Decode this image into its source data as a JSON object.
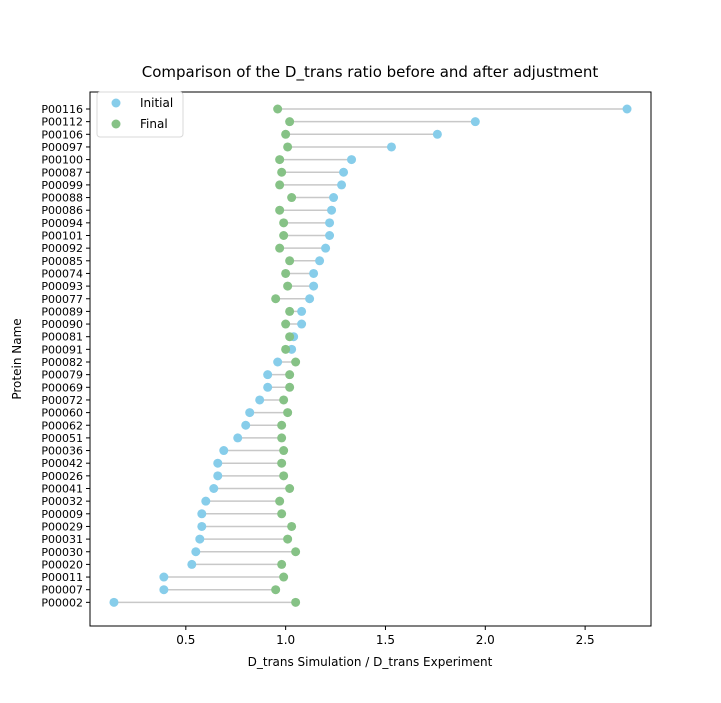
{
  "chart_data": {
    "type": "scatter",
    "subtype": "dumbbell",
    "title": "Comparison of the D_trans ratio before and after adjustment",
    "xlabel": "D_trans Simulation / D_trans Experiment",
    "ylabel": "Protein Name",
    "xlim": [
      0.02,
      2.83
    ],
    "xticks": [
      0.5,
      1.0,
      1.5,
      2.0,
      2.5
    ],
    "xtick_labels": [
      "0.5",
      "1.0",
      "1.5",
      "2.0",
      "2.5"
    ],
    "grid": false,
    "legend_position": "top-left",
    "categories": [
      "P00116",
      "P00112",
      "P00106",
      "P00097",
      "P00100",
      "P00087",
      "P00099",
      "P00088",
      "P00086",
      "P00094",
      "P00101",
      "P00092",
      "P00085",
      "P00074",
      "P00093",
      "P00077",
      "P00089",
      "P00090",
      "P00081",
      "P00091",
      "P00082",
      "P00079",
      "P00069",
      "P00072",
      "P00060",
      "P00062",
      "P00051",
      "P00036",
      "P00042",
      "P00026",
      "P00041",
      "P00032",
      "P00009",
      "P00029",
      "P00031",
      "P00030",
      "P00020",
      "P00011",
      "P00007",
      "P00002"
    ],
    "series": [
      {
        "name": "Initial",
        "color": "#87cdea",
        "values": [
          2.71,
          1.95,
          1.76,
          1.53,
          1.33,
          1.29,
          1.28,
          1.24,
          1.23,
          1.22,
          1.22,
          1.2,
          1.17,
          1.14,
          1.14,
          1.12,
          1.08,
          1.08,
          1.04,
          1.03,
          0.96,
          0.91,
          0.91,
          0.87,
          0.82,
          0.8,
          0.76,
          0.69,
          0.66,
          0.66,
          0.64,
          0.6,
          0.58,
          0.58,
          0.57,
          0.55,
          0.53,
          0.39,
          0.39,
          0.14
        ]
      },
      {
        "name": "Final",
        "color": "#86c286",
        "values": [
          0.96,
          1.02,
          1.0,
          1.01,
          0.97,
          0.98,
          0.97,
          1.03,
          0.97,
          0.99,
          0.99,
          0.97,
          1.02,
          1.0,
          1.01,
          0.95,
          1.02,
          1.0,
          1.02,
          1.0,
          1.05,
          1.02,
          1.02,
          0.99,
          1.01,
          0.98,
          0.98,
          0.99,
          0.98,
          0.99,
          1.02,
          0.97,
          0.98,
          1.03,
          1.01,
          1.05,
          0.98,
          0.99,
          0.95,
          1.05
        ]
      }
    ],
    "connector_color": "#c8c8c8"
  }
}
